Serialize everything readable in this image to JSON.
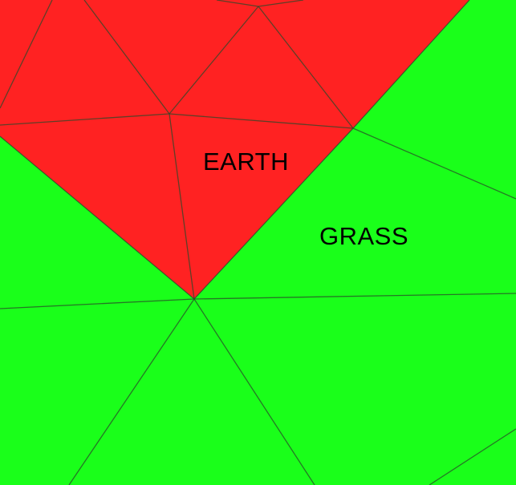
{
  "regions": [
    {
      "name": "earth",
      "label": "EARTH",
      "color": "#ff2222"
    },
    {
      "name": "grass",
      "label": "GRASS",
      "color": "#1aff1a"
    }
  ],
  "edge_color": "#2a4a2a"
}
